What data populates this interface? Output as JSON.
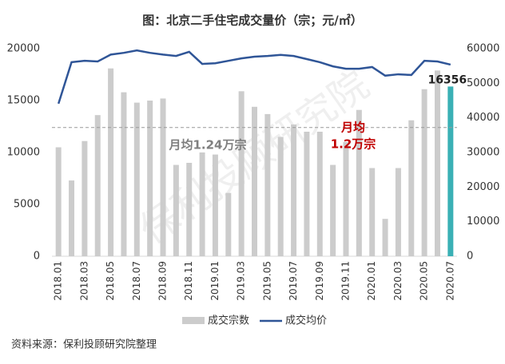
{
  "chart_data": {
    "type": "bar-line",
    "title": "图：北京二手住宅成交量价（宗；元/㎡）",
    "source": "资料来源：保利投顾研究院整理",
    "watermark": "保利投顾研究院",
    "categories": [
      "2018.01",
      null,
      "2018.03",
      null,
      "2018.05",
      null,
      "2018.07",
      null,
      "2018.09",
      null,
      "2018.11",
      null,
      "2019.01",
      null,
      "2019.03",
      null,
      "2019.05",
      null,
      "2019.07",
      null,
      "2019.09",
      null,
      "2019.11",
      null,
      "2020.01",
      null,
      "2020.03",
      null,
      "2020.05",
      null,
      "2020.07"
    ],
    "series": [
      {
        "name": "成交宗数",
        "kind": "bar",
        "color": "#cccccc",
        "highlight_color": "#3ab0b5",
        "values": [
          10500,
          7300,
          11100,
          13600,
          18100,
          15800,
          14800,
          15000,
          15200,
          8800,
          9000,
          10000,
          9800,
          6100,
          15900,
          14400,
          13700,
          11500,
          12700,
          12000,
          12000,
          8800,
          11000,
          14100,
          8500,
          3600,
          8500,
          13100,
          16100,
          17900,
          16356
        ],
        "highlight": [
          false,
          false,
          false,
          false,
          false,
          false,
          false,
          false,
          false,
          false,
          false,
          false,
          false,
          false,
          false,
          false,
          false,
          false,
          false,
          false,
          false,
          false,
          false,
          false,
          false,
          false,
          false,
          false,
          false,
          false,
          true
        ]
      },
      {
        "name": "成交均价",
        "kind": "line",
        "axis": "y2",
        "color": "#2f5597",
        "values": [
          44100,
          56100,
          56500,
          56300,
          58300,
          58800,
          59500,
          58800,
          58300,
          57900,
          59100,
          55600,
          55800,
          56500,
          57200,
          57700,
          57900,
          58200,
          57900,
          57000,
          56100,
          54900,
          54200,
          54200,
          54700,
          52200,
          52600,
          52400,
          56500,
          56300,
          55400
        ]
      }
    ],
    "reference_line": {
      "value": 12400,
      "label": "月均1.24万宗"
    },
    "annotation": [
      "月均",
      "1.2万宗"
    ],
    "ylim": [
      0,
      20000
    ],
    "yticks": [
      0,
      5000,
      10000,
      15000,
      20000
    ],
    "y2lim": [
      0,
      60000
    ],
    "y2ticks": [
      0,
      10000,
      20000,
      30000,
      40000,
      50000,
      60000
    ]
  }
}
